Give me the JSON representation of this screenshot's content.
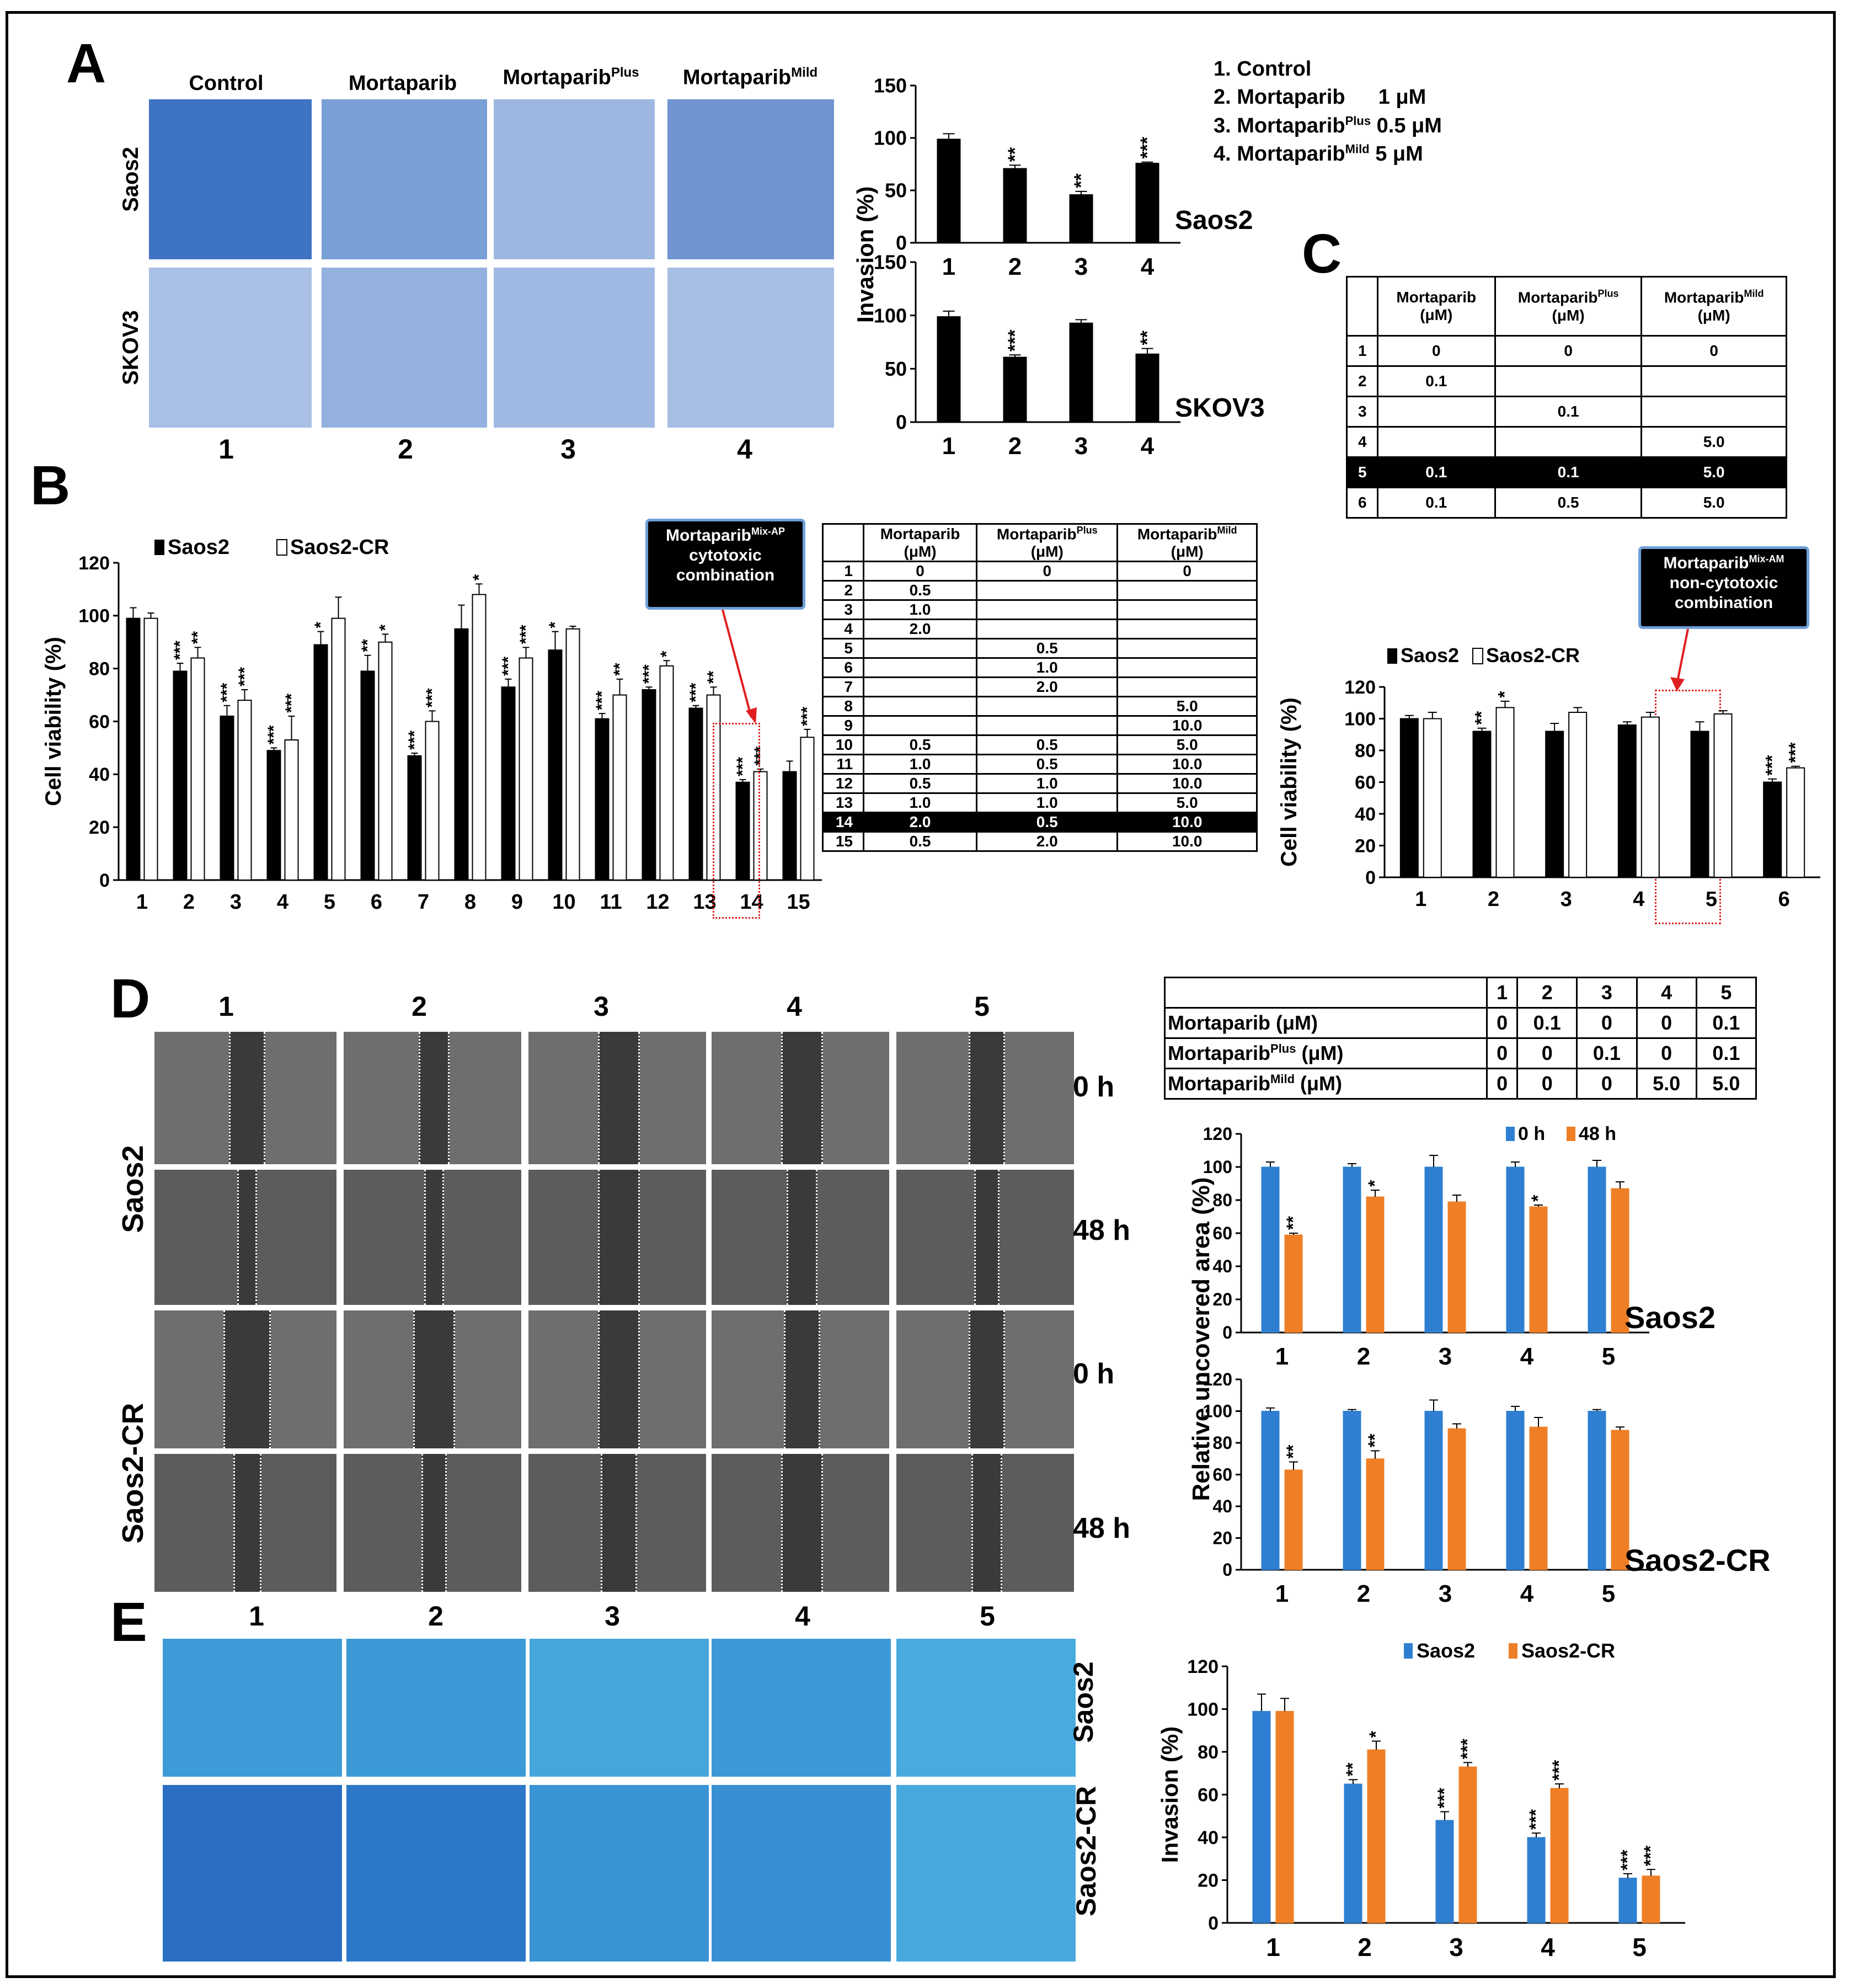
{
  "panels": {
    "A": "A",
    "B": "B",
    "C": "C",
    "D": "D",
    "E": "E"
  },
  "colors": {
    "blue": "#2e7fd1",
    "orange": "#ef7f26",
    "black": "#000000",
    "white": "#ffffff",
    "stain_dense": "#3a6fc0",
    "stain_light": "#9bb7df",
    "teal": "#35a8d8",
    "teal_dark": "#1f5fb8",
    "gray": "#8a8a8a"
  },
  "panelA": {
    "col_headers": [
      "Control",
      "Mortaparib",
      "Mortaparib",
      "Mortaparib"
    ],
    "col_header_sups": [
      "",
      "",
      "Plus",
      "Mild"
    ],
    "row_labels": [
      "Saos2",
      "SKOV3"
    ],
    "col_numbers": [
      "1",
      "2",
      "3",
      "4"
    ],
    "legend": [
      {
        "n": "1.",
        "name": "Control",
        "sup": "",
        "dose": ""
      },
      {
        "n": "2.",
        "name": "Mortaparib",
        "sup": "",
        "dose": "1 μM"
      },
      {
        "n": "3.",
        "name": "Mortaparib",
        "sup": "Plus",
        "dose": "0.5 μM"
      },
      {
        "n": "4.",
        "name": "Mortaparib",
        "sup": "Mild",
        "dose": "5 μM"
      }
    ]
  },
  "panelB": {
    "annotation": {
      "title": "Mortaparib",
      "sup": "Mix-AP",
      "line2": "cytotoxic",
      "line3": "combination"
    },
    "table": {
      "headers": [
        [
          "",
          ""
        ],
        [
          "Mortaparib",
          "(μM)"
        ],
        [
          "Mortaparib",
          "(μM)"
        ],
        [
          "Mortaparib",
          "(μM)"
        ]
      ],
      "header_sups": [
        "",
        "",
        "Plus",
        "Mild"
      ],
      "rows": [
        [
          "1",
          "0",
          "0",
          "0"
        ],
        [
          "2",
          "0.5",
          "",
          ""
        ],
        [
          "3",
          "1.0",
          "",
          ""
        ],
        [
          "4",
          "2.0",
          "",
          ""
        ],
        [
          "5",
          "",
          "0.5",
          ""
        ],
        [
          "6",
          "",
          "1.0",
          ""
        ],
        [
          "7",
          "",
          "2.0",
          ""
        ],
        [
          "8",
          "",
          "",
          "5.0"
        ],
        [
          "9",
          "",
          "",
          "10.0"
        ],
        [
          "10",
          "0.5",
          "0.5",
          "5.0"
        ],
        [
          "11",
          "1.0",
          "0.5",
          "10.0"
        ],
        [
          "12",
          "0.5",
          "1.0",
          "10.0"
        ],
        [
          "13",
          "1.0",
          "1.0",
          "5.0"
        ],
        [
          "14",
          "2.0",
          "0.5",
          "10.0"
        ],
        [
          "15",
          "0.5",
          "2.0",
          "10.0"
        ]
      ],
      "highlight_row": "14"
    }
  },
  "panelC": {
    "annotation": {
      "title": "Mortaparib",
      "sup": "Mix-AM",
      "line2": "non-cytotoxic",
      "line3": "combination"
    },
    "table": {
      "headers": [
        [
          "",
          ""
        ],
        [
          "Mortaparib",
          "(μM)"
        ],
        [
          "Mortaparib",
          "(μM)"
        ],
        [
          "Mortaparib",
          "(μM)"
        ]
      ],
      "header_sups": [
        "",
        "",
        "Plus",
        "Mild"
      ],
      "rows": [
        [
          "1",
          "0",
          "0",
          "0"
        ],
        [
          "2",
          "0.1",
          "",
          ""
        ],
        [
          "3",
          "",
          "0.1",
          ""
        ],
        [
          "4",
          "",
          "",
          "5.0"
        ],
        [
          "5",
          "0.1",
          "0.1",
          "5.0"
        ],
        [
          "6",
          "0.1",
          "0.5",
          "5.0"
        ]
      ],
      "highlight_row": "5"
    }
  },
  "panelD": {
    "col_numbers": [
      "1",
      "2",
      "3",
      "4",
      "5"
    ],
    "time_labels": [
      "0 h",
      "48 h",
      "0 h",
      "48 h"
    ],
    "row_labels": [
      "Saos2",
      "Saos2-CR"
    ],
    "table": {
      "header": [
        "",
        "1",
        "2",
        "3",
        "4",
        "5"
      ],
      "rows": [
        {
          "label": "Mortaparib (μM)",
          "sup": "",
          "after": "",
          "values": [
            "0",
            "0.1",
            "0",
            "0",
            "0.1"
          ]
        },
        {
          "label": "Mortaparib",
          "sup": "Plus",
          "after": " (μM)",
          "values": [
            "0",
            "0",
            "0.1",
            "0",
            "0.1"
          ]
        },
        {
          "label": "Mortaparib",
          "sup": "Mild",
          "after": " (μM)",
          "values": [
            "0",
            "0",
            "0",
            "5.0",
            "5.0"
          ]
        }
      ]
    }
  },
  "panelE": {
    "col_numbers": [
      "1",
      "2",
      "3",
      "4",
      "5"
    ],
    "row_labels": [
      "Saos2",
      "Saos2-CR"
    ]
  },
  "chart_data": [
    {
      "id": "A-saos2",
      "type": "bar",
      "categories": [
        "1",
        "2",
        "3",
        "4"
      ],
      "series": [
        {
          "name": "Saos2",
          "values": [
            99,
            71,
            46,
            76
          ],
          "errors": [
            5,
            3,
            3,
            1
          ]
        }
      ],
      "significance": [
        "",
        "**",
        "**",
        "***"
      ],
      "ylim": [
        0,
        150
      ],
      "yticks": [
        0,
        50,
        100,
        150
      ],
      "ylabel": "Invasion (%)",
      "label": "Saos2"
    },
    {
      "id": "A-skov3",
      "type": "bar",
      "categories": [
        "1",
        "2",
        "3",
        "4"
      ],
      "series": [
        {
          "name": "SKOV3",
          "values": [
            99,
            61,
            93,
            64
          ],
          "errors": [
            5,
            2,
            3,
            5
          ]
        }
      ],
      "significance": [
        "",
        "***",
        "",
        "**"
      ],
      "ylim": [
        0,
        150
      ],
      "yticks": [
        0,
        50,
        100,
        150
      ],
      "ylabel": "Invasion (%)",
      "label": "SKOV3"
    },
    {
      "id": "B",
      "type": "bar",
      "categories": [
        "1",
        "2",
        "3",
        "4",
        "5",
        "6",
        "7",
        "8",
        "9",
        "10",
        "11",
        "12",
        "13",
        "14",
        "15"
      ],
      "series": [
        {
          "name": "Saos2",
          "values": [
            99,
            79,
            62,
            49,
            89,
            79,
            47,
            95,
            73,
            87,
            61,
            72,
            65,
            37,
            41
          ],
          "errors": [
            4,
            3,
            4,
            1,
            5,
            6,
            1,
            9,
            3,
            7,
            2,
            1,
            1,
            1,
            4
          ],
          "significance": [
            "",
            "***",
            "***",
            "***",
            "*",
            "**",
            "***",
            "",
            "***",
            "*",
            "***",
            "***",
            "***",
            "***",
            ""
          ]
        },
        {
          "name": "Saos2-CR",
          "values": [
            99,
            84,
            68,
            53,
            99,
            90,
            60,
            108,
            84,
            95,
            70,
            81,
            70,
            41,
            54
          ],
          "errors": [
            2,
            4,
            4,
            9,
            8,
            3,
            4,
            4,
            4,
            1,
            6,
            2,
            3,
            1,
            3
          ],
          "significance": [
            "",
            "**",
            "***",
            "***",
            "",
            "*",
            "***",
            "*",
            "***",
            "",
            "**",
            "*",
            "**",
            "***",
            "***"
          ]
        }
      ],
      "ylim": [
        0,
        120
      ],
      "yticks": [
        0,
        20,
        40,
        60,
        80,
        100,
        120
      ],
      "ylabel": "Cell viability (%)"
    },
    {
      "id": "C",
      "type": "bar",
      "categories": [
        "1",
        "2",
        "3",
        "4",
        "5",
        "6"
      ],
      "series": [
        {
          "name": "Saos2",
          "values": [
            100,
            92,
            92,
            96,
            92,
            60
          ],
          "errors": [
            2,
            2,
            5,
            2,
            6,
            2
          ],
          "significance": [
            "",
            "**",
            "",
            "",
            "",
            "***"
          ]
        },
        {
          "name": "Saos2-CR",
          "values": [
            100,
            107,
            104,
            101,
            103,
            69
          ],
          "errors": [
            4,
            4,
            3,
            3,
            2,
            1
          ],
          "significance": [
            "",
            "*",
            "",
            "",
            "",
            "***"
          ]
        }
      ],
      "ylim": [
        0,
        120
      ],
      "yticks": [
        0,
        20,
        40,
        60,
        80,
        100,
        120
      ],
      "ylabel": "Cell viability (%)"
    },
    {
      "id": "D-saos2",
      "type": "bar",
      "categories": [
        "1",
        "2",
        "3",
        "4",
        "5"
      ],
      "series": [
        {
          "name": "0 h",
          "values": [
            100,
            100,
            100,
            100,
            100
          ],
          "errors": [
            3,
            2,
            7,
            3,
            4
          ],
          "significance": [
            "",
            "",
            "",
            "",
            ""
          ]
        },
        {
          "name": "48 h",
          "values": [
            59,
            82,
            79,
            76,
            87
          ],
          "errors": [
            1,
            4,
            4,
            1,
            4
          ],
          "significance": [
            "**",
            "*",
            "",
            "*",
            ""
          ]
        }
      ],
      "ylim": [
        0,
        120
      ],
      "yticks": [
        0,
        20,
        40,
        60,
        80,
        100,
        120
      ],
      "ylabel": "Relative uncovered area (%)",
      "label": "Saos2"
    },
    {
      "id": "D-saos2cr",
      "type": "bar",
      "categories": [
        "1",
        "2",
        "3",
        "4",
        "5"
      ],
      "series": [
        {
          "name": "0 h",
          "values": [
            100,
            100,
            100,
            100,
            100
          ],
          "errors": [
            2,
            1,
            7,
            3,
            1
          ],
          "significance": [
            "",
            "",
            "",
            "",
            ""
          ]
        },
        {
          "name": "48 h",
          "values": [
            63,
            70,
            89,
            90,
            88
          ],
          "errors": [
            5,
            5,
            3,
            6,
            2
          ],
          "significance": [
            "**",
            "**",
            "",
            "",
            ""
          ]
        }
      ],
      "ylim": [
        0,
        120
      ],
      "yticks": [
        0,
        20,
        40,
        60,
        80,
        100,
        120
      ],
      "ylabel": "Relative uncovered area (%)",
      "label": "Saos2-CR"
    },
    {
      "id": "E",
      "type": "bar",
      "categories": [
        "1",
        "2",
        "3",
        "4",
        "5"
      ],
      "series": [
        {
          "name": "Saos2",
          "values": [
            99,
            65,
            48,
            40,
            21
          ],
          "errors": [
            8,
            2,
            4,
            2,
            2
          ],
          "significance": [
            "",
            "**",
            "***",
            "***",
            "***"
          ]
        },
        {
          "name": "Saos2-CR",
          "values": [
            99,
            81,
            73,
            63,
            22
          ],
          "errors": [
            6,
            4,
            2,
            2,
            3
          ],
          "significance": [
            "",
            "*",
            "***",
            "***",
            "***"
          ]
        }
      ],
      "ylim": [
        0,
        120
      ],
      "yticks": [
        0,
        20,
        40,
        60,
        80,
        100,
        120
      ],
      "ylabel": "Invasion (%)"
    }
  ]
}
